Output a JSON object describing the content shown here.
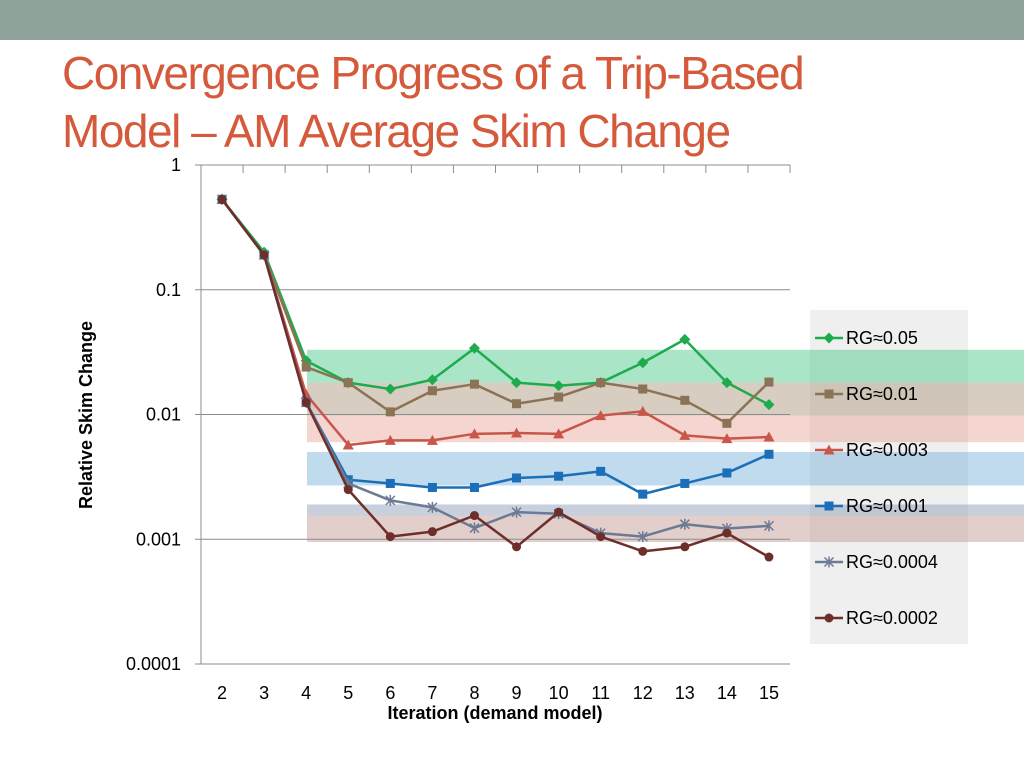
{
  "slide": {
    "title_line1": "Convergence Progress of a Trip-Based",
    "title_line2": "Model – AM Average Skim Change"
  },
  "chart_data": {
    "type": "line",
    "title": "",
    "xlabel": "Iteration (demand model)",
    "ylabel": "Relative Skim Change",
    "yscale": "log",
    "ylim": [
      0.0001,
      1
    ],
    "grid": "vertical minor ticks only; no horizontal gridlines except decade lines",
    "legend_position": "right",
    "y_tick_labels": [
      "1",
      "0.1",
      "0.01",
      "0.001",
      "0.0001"
    ],
    "x": [
      2,
      3,
      4,
      5,
      6,
      7,
      8,
      9,
      10,
      11,
      12,
      13,
      14,
      15
    ],
    "series": [
      {
        "name": "RG≈0.05",
        "color": "#1eab4e",
        "marker": "diamond",
        "values": [
          0.53,
          0.2,
          0.027,
          0.018,
          0.016,
          0.019,
          0.034,
          0.018,
          0.017,
          0.018,
          0.026,
          0.04,
          0.018,
          0.012
        ]
      },
      {
        "name": "RG≈0.01",
        "color": "#8b7356",
        "marker": "square",
        "values": [
          0.53,
          0.19,
          0.024,
          0.018,
          0.0105,
          0.0155,
          0.0175,
          0.0122,
          0.0138,
          0.018,
          0.016,
          0.013,
          0.0085,
          0.0182
        ]
      },
      {
        "name": "RG≈0.003",
        "color": "#c9564a",
        "marker": "triangle",
        "values": [
          0.53,
          0.19,
          0.0145,
          0.0057,
          0.0062,
          0.0062,
          0.007,
          0.0071,
          0.007,
          0.0098,
          0.0106,
          0.0068,
          0.0064,
          0.0066
        ]
      },
      {
        "name": "RG≈0.001",
        "color": "#1a6fb8",
        "marker": "square",
        "values": [
          0.53,
          0.19,
          0.0125,
          0.003,
          0.0028,
          0.0026,
          0.0026,
          0.0031,
          0.0032,
          0.0035,
          0.0023,
          0.0028,
          0.0034,
          0.0048
        ]
      },
      {
        "name": "RG≈0.0004",
        "color": "#6c7a93",
        "marker": "star",
        "values": [
          0.53,
          0.19,
          0.0125,
          0.0028,
          0.00205,
          0.0018,
          0.00123,
          0.00165,
          0.0016,
          0.00112,
          0.00105,
          0.00132,
          0.00122,
          0.00128
        ]
      },
      {
        "name": "RG≈0.0002",
        "color": "#6e2f2a",
        "marker": "circle",
        "values": [
          0.53,
          0.19,
          0.0125,
          0.0025,
          0.00105,
          0.00115,
          0.00155,
          0.00087,
          0.00165,
          0.00105,
          0.0008,
          0.00087,
          0.00112,
          0.00072
        ]
      }
    ],
    "bands": [
      {
        "series": "RG≈0.05",
        "color": "#34c27a",
        "ymin": 0.018,
        "ymax": 0.033
      },
      {
        "series": "RG≈0.01",
        "color": "#a08a6c",
        "ymin": 0.0098,
        "ymax": 0.018
      },
      {
        "series": "RG≈0.003",
        "color": "#e89a8e",
        "ymin": 0.006,
        "ymax": 0.0098
      },
      {
        "series": "RG≈0.001",
        "color": "#6aa7d6",
        "ymin": 0.0027,
        "ymax": 0.005
      },
      {
        "series": "RG≈0.0004",
        "color": "#7c8eb0",
        "ymin": 0.00155,
        "ymax": 0.0019
      },
      {
        "series": "RG≈0.0002",
        "color": "#b98a82",
        "ymin": 0.00095,
        "ymax": 0.00155
      }
    ]
  }
}
